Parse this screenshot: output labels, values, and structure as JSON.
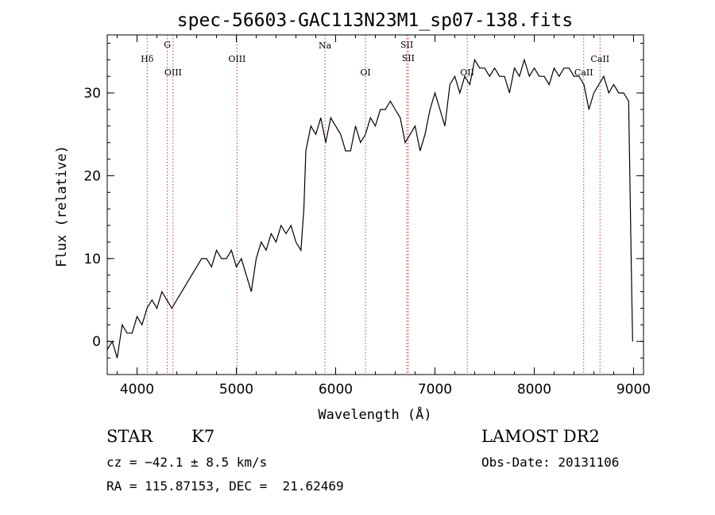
{
  "chart_data": {
    "type": "line",
    "title": "spec-56603-GAC113N23M1_sp07-138.fits",
    "xlabel": "Wavelength (Å)",
    "ylabel": "Flux (relative)",
    "xlim": [
      3700,
      9100
    ],
    "ylim": [
      -4,
      37
    ],
    "xticks": [
      4000,
      5000,
      6000,
      7000,
      8000,
      9000
    ],
    "yticks": [
      0,
      10,
      20,
      30
    ],
    "xtick_labels": [
      "4000",
      "5000",
      "6000",
      "7000",
      "8000",
      "9000"
    ],
    "ytick_labels": [
      "0",
      "10",
      "20",
      "30"
    ],
    "series": [
      {
        "line_color": "#000000",
        "x": [
          3700,
          3750,
          3800,
          3850,
          3900,
          3950,
          4000,
          4050,
          4100,
          4150,
          4200,
          4250,
          4300,
          4350,
          4400,
          4450,
          4500,
          4550,
          4600,
          4650,
          4700,
          4750,
          4800,
          4850,
          4900,
          4950,
          5000,
          5050,
          5100,
          5150,
          5200,
          5250,
          5300,
          5350,
          5400,
          5450,
          5500,
          5550,
          5600,
          5650,
          5680,
          5700,
          5750,
          5800,
          5850,
          5900,
          5950,
          6000,
          6050,
          6100,
          6150,
          6200,
          6250,
          6300,
          6350,
          6400,
          6450,
          6500,
          6550,
          6600,
          6650,
          6700,
          6750,
          6800,
          6850,
          6900,
          6950,
          7000,
          7050,
          7100,
          7150,
          7200,
          7250,
          7300,
          7350,
          7400,
          7450,
          7500,
          7550,
          7600,
          7650,
          7700,
          7750,
          7800,
          7850,
          7900,
          7950,
          8000,
          8050,
          8100,
          8150,
          8200,
          8250,
          8300,
          8350,
          8400,
          8450,
          8500,
          8550,
          8600,
          8650,
          8700,
          8750,
          8800,
          8850,
          8900,
          8950,
          8980,
          8990
        ],
        "y": [
          -1,
          0,
          -2,
          2,
          1,
          1,
          3,
          2,
          4,
          5,
          4,
          6,
          5,
          4,
          5,
          6,
          7,
          8,
          9,
          10,
          10,
          9,
          11,
          10,
          10,
          11,
          9,
          10,
          8,
          6,
          10,
          12,
          11,
          13,
          12,
          14,
          13,
          14,
          12,
          11,
          16,
          23,
          26,
          25,
          27,
          24,
          27,
          26,
          25,
          23,
          23,
          26,
          24,
          25,
          27,
          26,
          28,
          28,
          29,
          28,
          27,
          24,
          25,
          26,
          23,
          25,
          28,
          30,
          28,
          26,
          31,
          32,
          30,
          32,
          31,
          34,
          33,
          33,
          32,
          33,
          32,
          32,
          30,
          33,
          32,
          34,
          32,
          33,
          32,
          32,
          31,
          33,
          32,
          33,
          33,
          32,
          32,
          31,
          28,
          30,
          31,
          32,
          30,
          31,
          30,
          30,
          29,
          7,
          0
        ]
      }
    ],
    "lines": [
      {
        "label": "Hδ",
        "x": 4102
      },
      {
        "label": "G",
        "x": 4305
      },
      {
        "label": "OIII",
        "x": 4363
      },
      {
        "label": "OIII",
        "x": 5007
      },
      {
        "label": "Na",
        "x": 5893
      },
      {
        "label": "OI",
        "x": 6300
      },
      {
        "label": "SII",
        "x": 6717
      },
      {
        "label": "SII",
        "x": 6731
      },
      {
        "label": "OII",
        "x": 7325
      },
      {
        "label": "CaII",
        "x": 8498
      },
      {
        "label": "CaII",
        "x": 8662
      }
    ],
    "line_color": "#c0392b",
    "grid": false,
    "legend": "none"
  },
  "info": {
    "class": "STAR",
    "subclass": "K7",
    "survey": "LAMOST DR2",
    "cz": "cz = −42.1 ± 8.5 km/s",
    "obs_date": "Obs-Date: 20131106",
    "radec": "RA = 115.87153, DEC =  21.62469"
  }
}
